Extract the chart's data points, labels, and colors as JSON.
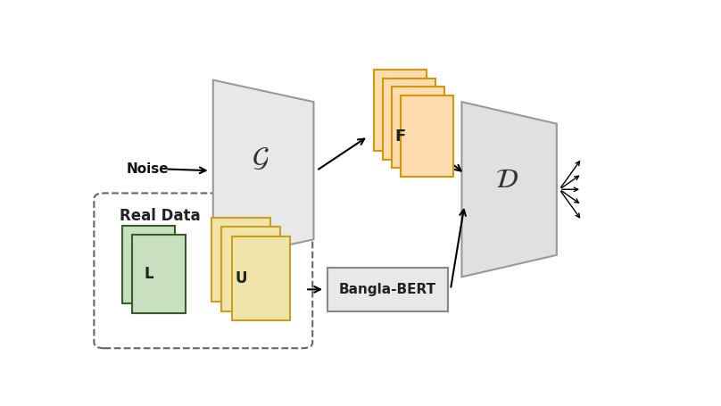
{
  "bg_color": "#ffffff",
  "fig_width": 8.08,
  "fig_height": 4.55,
  "dpi": 100,
  "generator_color": "#e8e8e8",
  "generator_edge": "#999999",
  "discriminator_color": "#e0e0e0",
  "discriminator_edge": "#999999",
  "fake_face": "#fddcb0",
  "fake_edge": "#d4960a",
  "labeled_face": "#c8dfc0",
  "labeled_edge": "#3a5a30",
  "unlabeled_face": "#f0e4a8",
  "unlabeled_edge": "#c8a020",
  "bert_face": "#e8e8e8",
  "bert_edge": "#888888",
  "noise_label": "Noise",
  "real_data_label": "Real Data",
  "bangla_bert_label": "Bangla-BERT",
  "G_label": "$\\mathcal{G}$",
  "D_label": "$\\mathcal{D}$",
  "F_label": "F",
  "L_label": "L",
  "U_label": "U"
}
